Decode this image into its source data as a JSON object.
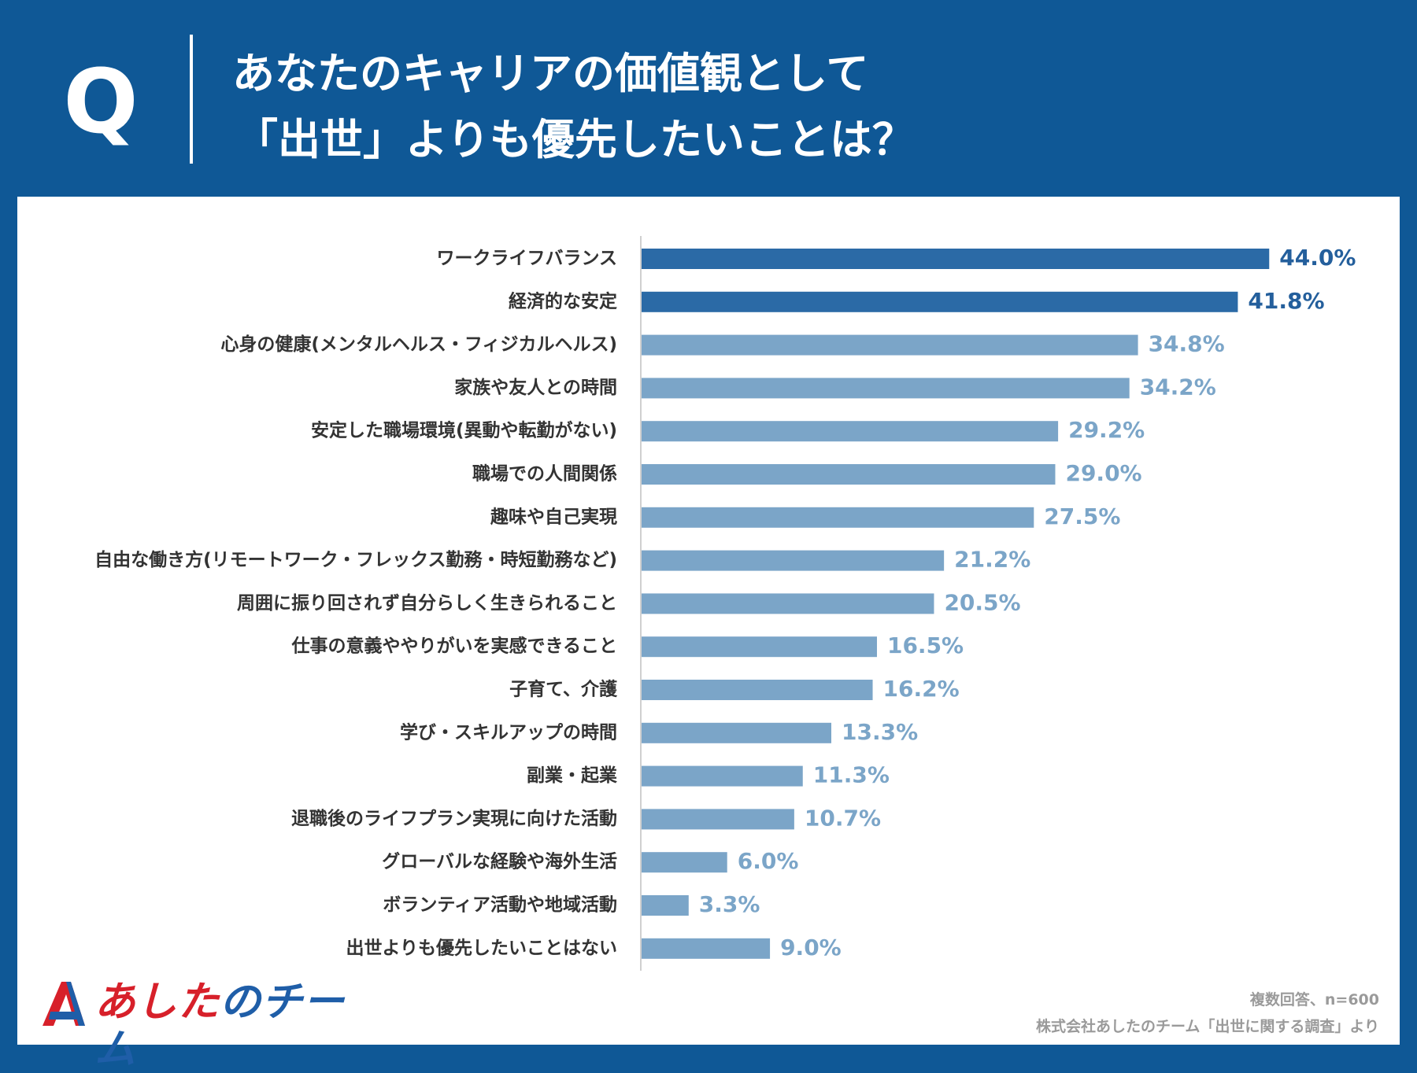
{
  "header": {
    "q_mark": "Q",
    "title_line1": "あなたのキャリアの価値観として",
    "title_line2": "「出世」よりも優先したいことは？"
  },
  "colors": {
    "background": "#0f5896",
    "bar_top": "#2b6aa6",
    "bar_rest": "#7ba5c8",
    "label_top": "#245f9c",
    "label_rest": "#7ba5c8",
    "logo_red": "#d7202a",
    "logo_blue": "#1f5ea8"
  },
  "chart_data": {
    "type": "bar",
    "orientation": "horizontal",
    "title": "あなたのキャリアの価値観として「出世」よりも優先したいことは？",
    "categories": [
      "ワークライフバランス",
      "経済的な安定",
      "心身の健康(メンタルヘルス・フィジカルヘルス)",
      "家族や友人との時間",
      "安定した職場環境(異動や転勤がない)",
      "職場での人間関係",
      "趣味や自己実現",
      "自由な働き方(リモートワーク・フレックス勤務・時短勤務など)",
      "周囲に振り回されず自分らしく生きられること",
      "仕事の意義ややりがいを実感できること",
      "子育て、介護",
      "学び・スキルアップの時間",
      "副業・起業",
      "退職後のライフプラン実現に向けた活動",
      "グローバルな経験や海外生活",
      "ボランティア活動や地域活動",
      "出世よりも優先したいことはない"
    ],
    "values": [
      44.0,
      41.8,
      34.8,
      34.2,
      29.2,
      29.0,
      27.5,
      21.2,
      20.5,
      16.5,
      16.2,
      13.3,
      11.3,
      10.7,
      6.0,
      3.3,
      9.0
    ],
    "value_labels": [
      "44.0%",
      "41.8%",
      "34.8%",
      "34.2%",
      "29.2%",
      "29.0%",
      "27.5%",
      "21.2%",
      "20.5%",
      "16.5%",
      "16.2%",
      "13.3%",
      "11.3%",
      "10.7%",
      "6.0%",
      "3.3%",
      "9.0%"
    ],
    "highlight_top": 2,
    "xlim": [
      0,
      50
    ],
    "unit": "%",
    "grid": false
  },
  "footer": {
    "logo_part1": "あした",
    "logo_part2": "の",
    "logo_part3": "チーム",
    "note1": "複数回答、n=600",
    "note2": "株式会社あしたのチーム「出世に関する調査」より"
  }
}
